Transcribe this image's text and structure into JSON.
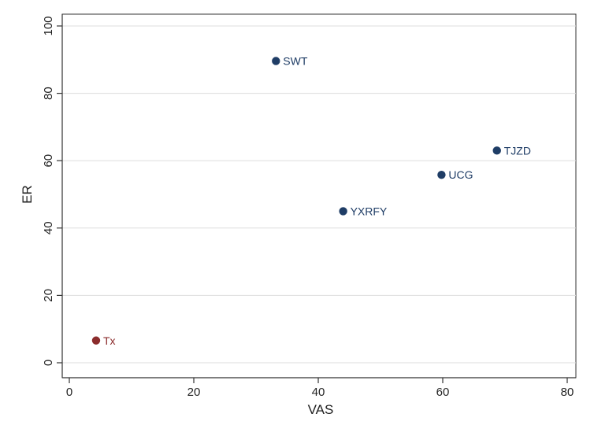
{
  "chart_data": {
    "type": "scatter",
    "title": "",
    "xlabel": "VAS",
    "ylabel": "ER",
    "xlim": [
      0,
      80
    ],
    "ylim": [
      0,
      100
    ],
    "xticks": [
      0,
      20,
      40,
      60,
      80
    ],
    "yticks": [
      0,
      20,
      40,
      60,
      80,
      100
    ],
    "grid": "horizontal",
    "points": [
      {
        "label": "SWT",
        "x": 33.2,
        "y": 89.6,
        "color": "#1f3d66"
      },
      {
        "label": "TJZD",
        "x": 68.7,
        "y": 63.0,
        "color": "#1f3d66"
      },
      {
        "label": "UCG",
        "x": 59.8,
        "y": 55.8,
        "color": "#1f3d66"
      },
      {
        "label": "YXRFY",
        "x": 44.0,
        "y": 45.0,
        "color": "#1f3d66"
      },
      {
        "label": "Tx",
        "x": 4.3,
        "y": 6.6,
        "color": "#8b2c2c"
      }
    ]
  }
}
